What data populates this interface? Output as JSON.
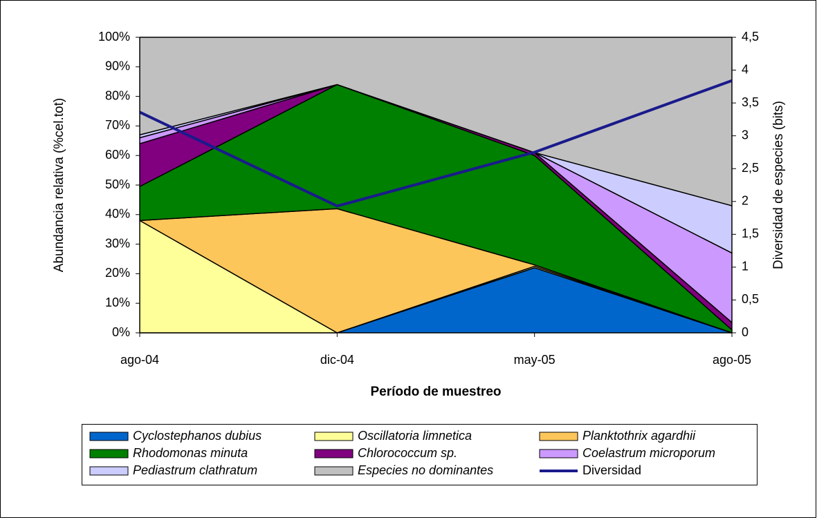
{
  "chart_data": {
    "type": "stacked_area",
    "x_label": "Período de muestreo",
    "y_label": "Abundancia relativa (%cel.tot)",
    "y2_label": "Diversidad de especies (bits)",
    "categories": [
      "ago-04",
      "dic-04",
      "may-05",
      "ago-05"
    ],
    "ylim": [
      0,
      100
    ],
    "yticks": [
      {
        "value": 0,
        "label": "0%"
      },
      {
        "value": 10,
        "label": "10%"
      },
      {
        "value": 20,
        "label": "20%"
      },
      {
        "value": 30,
        "label": "30%"
      },
      {
        "value": 40,
        "label": "40%"
      },
      {
        "value": 50,
        "label": "50%"
      },
      {
        "value": 60,
        "label": "60%"
      },
      {
        "value": 70,
        "label": "70%"
      },
      {
        "value": 80,
        "label": "80%"
      },
      {
        "value": 90,
        "label": "90%"
      },
      {
        "value": 100,
        "label": "100%"
      }
    ],
    "y2lim": [
      0,
      4.5
    ],
    "y2ticks": [
      0,
      {
        "value": 0.5,
        "label": "0,5"
      },
      1,
      {
        "value": 1.5,
        "label": "1,5"
      },
      2,
      {
        "value": 2.5,
        "label": "2,5"
      },
      3,
      {
        "value": 3.5,
        "label": "3,5"
      },
      4,
      {
        "value": 4.5,
        "label": "4,5"
      }
    ],
    "series": [
      {
        "name": "Cyclostephanos dubius",
        "color": "#0066cc",
        "values": [
          0,
          0,
          22,
          0
        ]
      },
      {
        "name": "Oscillatoria limnetica",
        "color": "#ffff99",
        "values": [
          38,
          0,
          0.5,
          0
        ]
      },
      {
        "name": "Planktothrix agardhii",
        "color": "#fdc65a",
        "values": [
          0,
          42,
          0.5,
          0
        ]
      },
      {
        "name": "Rhodomonas minuta",
        "color": "#008000",
        "values": [
          11.5,
          42,
          37,
          1
        ]
      },
      {
        "name": "Chlorococcum sp.",
        "color": "#800080",
        "values": [
          14.5,
          0,
          1,
          2.5
        ]
      },
      {
        "name": "Coelastrum microporum",
        "color": "#cc99ff",
        "values": [
          2,
          0,
          0,
          23.5
        ]
      },
      {
        "name": "Pediastrum clathratum",
        "color": "#ccccff",
        "values": [
          1,
          0,
          0,
          16
        ]
      },
      {
        "name": "Especies no dominantes",
        "color": "#c0c0c0",
        "values": [
          33,
          16,
          39,
          57
        ]
      },
      {
        "name": "Diversidad",
        "color": "#1a1a8c",
        "axis": "y2",
        "values": [
          3.36,
          1.93,
          2.75,
          3.84
        ]
      }
    ]
  }
}
